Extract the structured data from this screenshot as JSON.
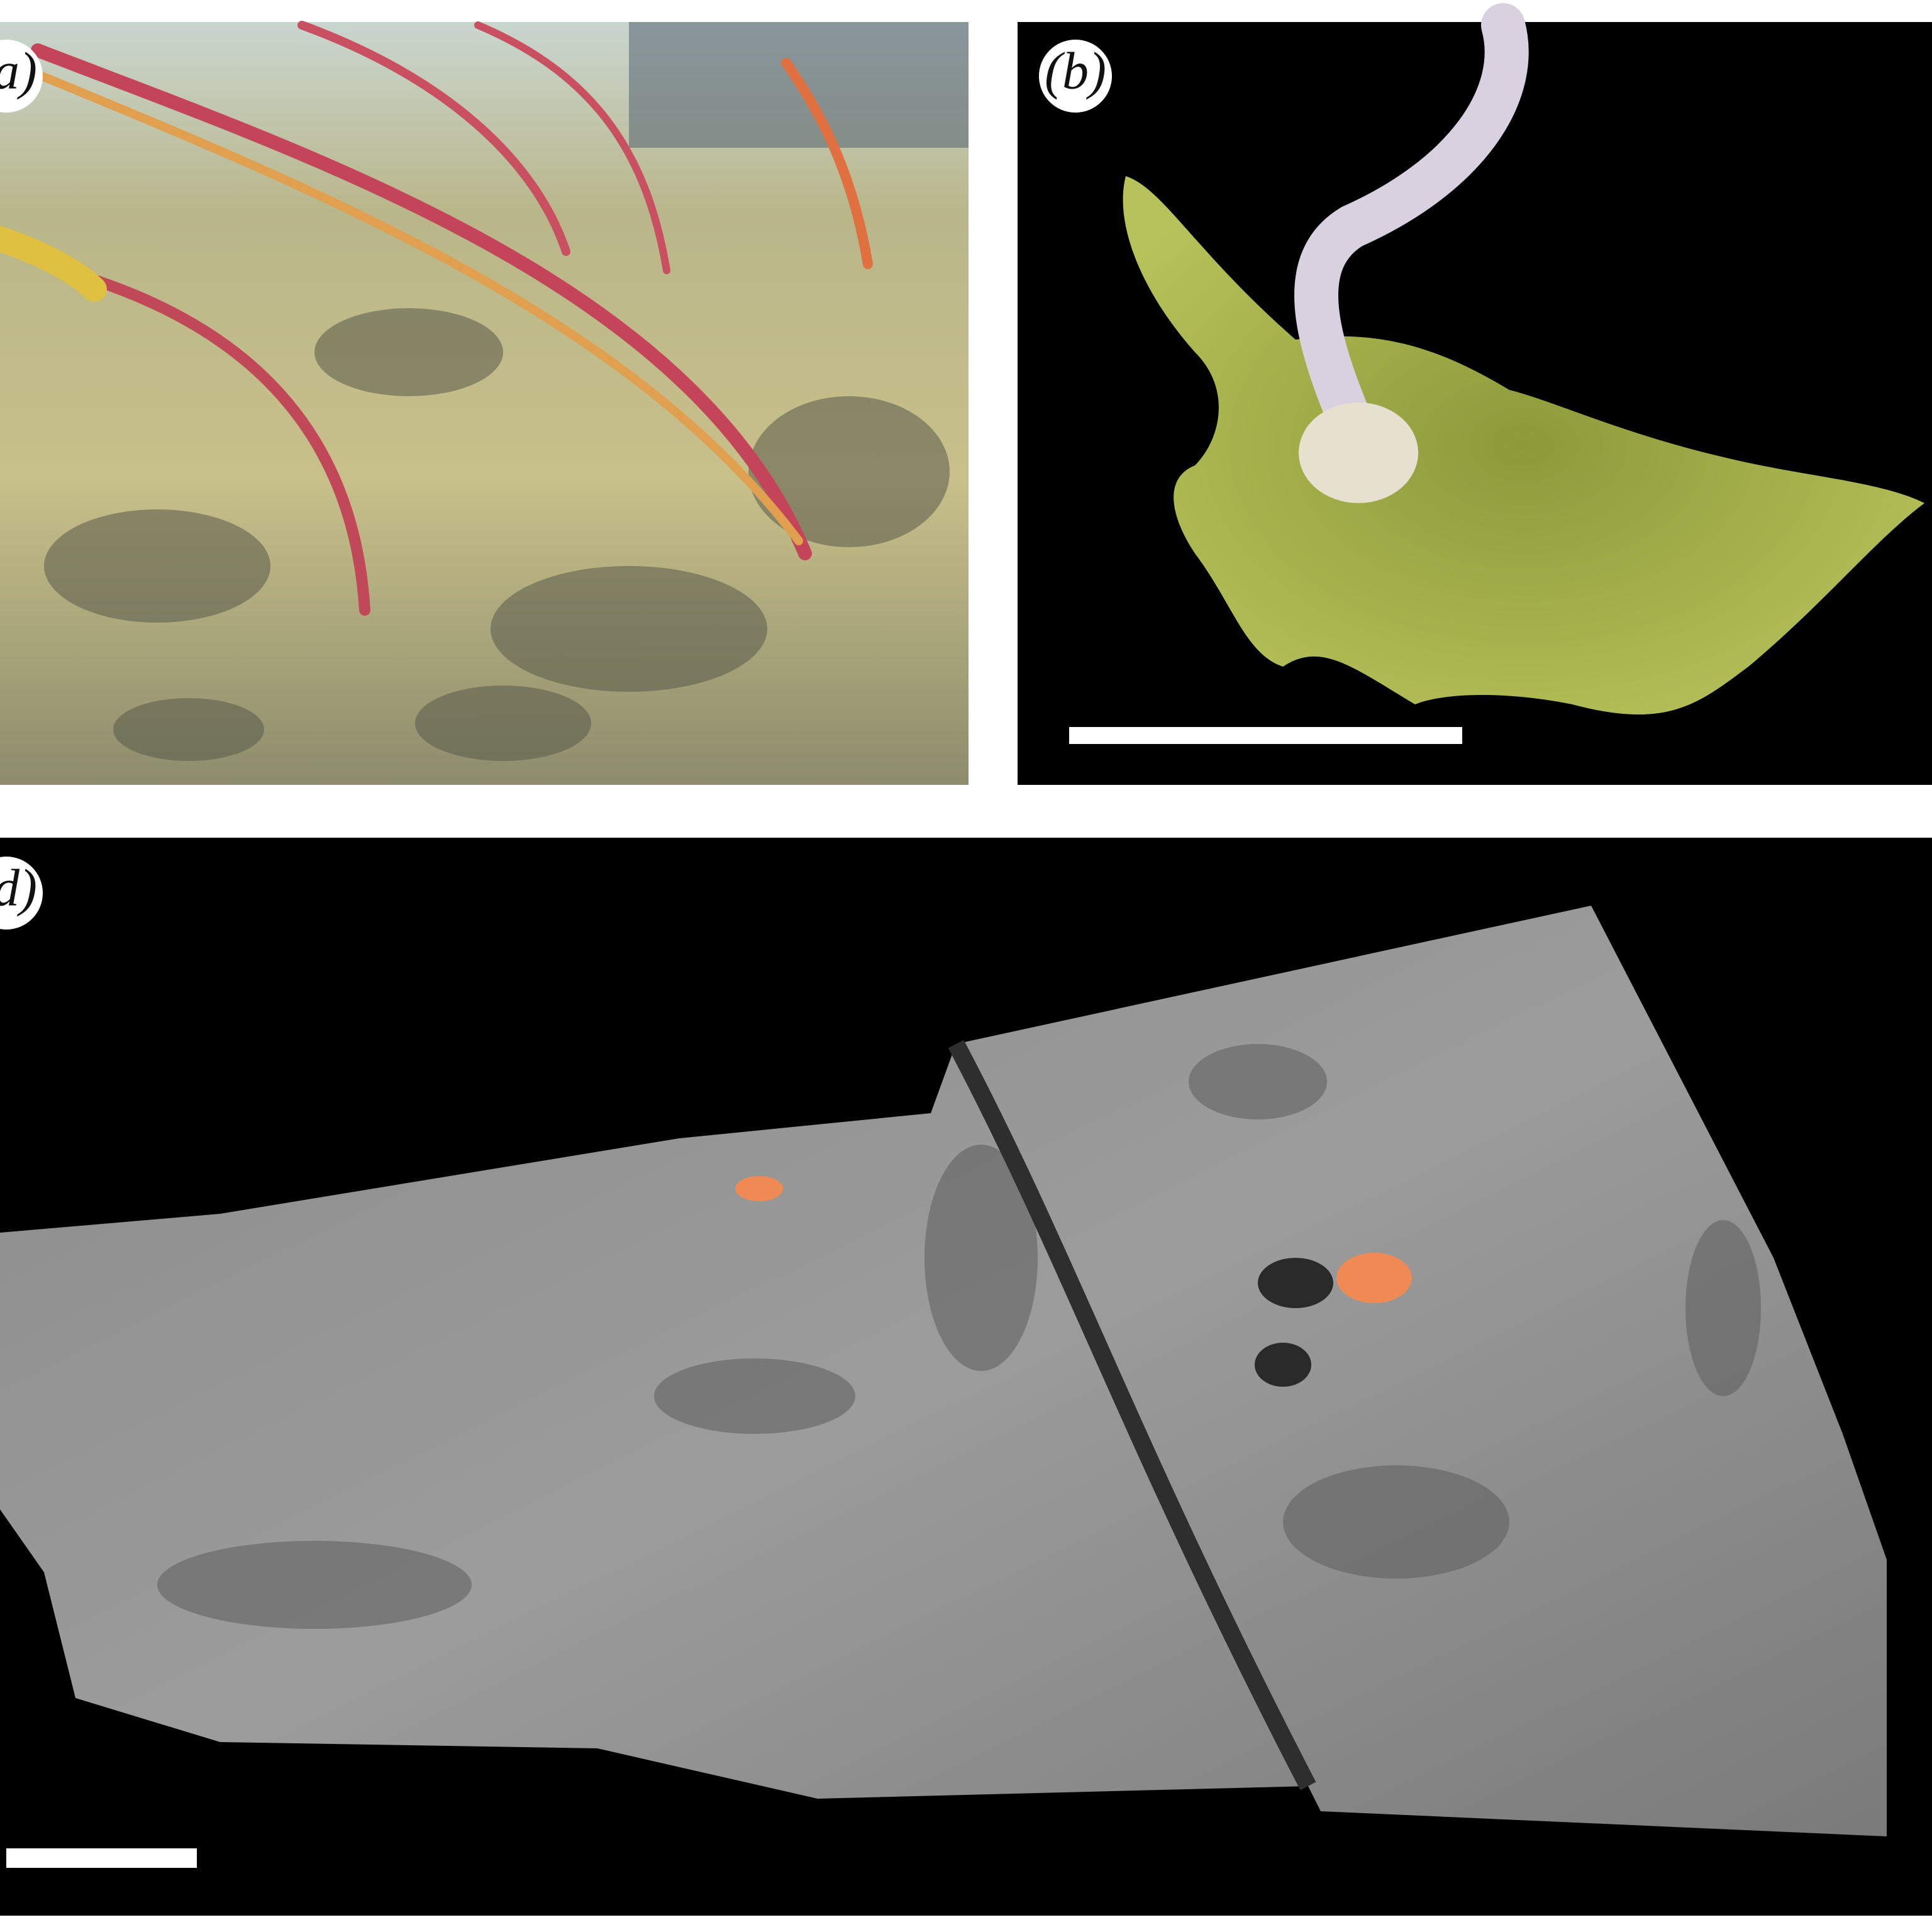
{
  "panels": [
    {
      "label": "(a)"
    },
    {
      "label": "(b)"
    },
    {
      "label": "(d)"
    }
  ]
}
